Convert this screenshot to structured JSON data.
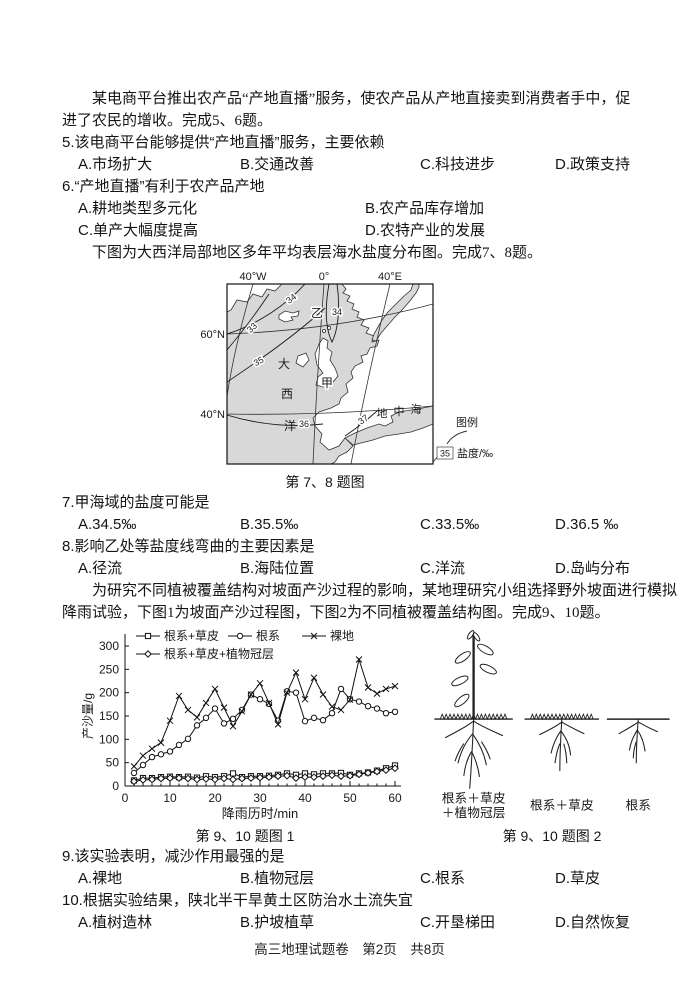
{
  "intro_ecommerce": {
    "line1": "某电商平台推出农产品“产地直播”服务，使农产品从产地直接卖到消费者手中，促",
    "line2": "进了农民的增收。完成5、6题。"
  },
  "q5": {
    "stem": "5.该电商平台能够提供“产地直播”服务，主要依赖",
    "options": [
      "A.市场扩大",
      "B.交通改善",
      "C.科技进步",
      "D.政策支持"
    ]
  },
  "q6": {
    "stem": "6.“产地直播”有利于农产品产地",
    "options": [
      "A.耕地类型多元化",
      "B.农产品库存增加",
      "C.单产大幅度提高",
      "D.农特产业的发展"
    ]
  },
  "intro_map": "下图为大西洋局部地区多年平均表层海水盐度分布图。完成7、8题。",
  "map": {
    "lon_labels": [
      "40°W",
      "0°",
      "40°E"
    ],
    "lat_labels": [
      "60°N",
      "40°N"
    ],
    "isolines": [
      "33",
      "34",
      "34",
      "35",
      "36",
      "37"
    ],
    "sea_atlantic": [
      "大",
      "西",
      "洋"
    ],
    "sea_med": [
      "地",
      "中",
      "海"
    ],
    "marker_jia": "甲",
    "marker_yi": "乙",
    "legend_title": "图例",
    "legend_value": "35",
    "legend_text": "盐度/‰",
    "caption": "第 7、8 题图"
  },
  "q7": {
    "stem": "7.甲海域的盐度可能是",
    "options": [
      "A.34.5‰",
      "B.35.5‰",
      "C.33.5‰",
      "D.36.5 ‰"
    ]
  },
  "q8": {
    "stem": "8.影响乙处等盐度线弯曲的主要因素是",
    "options": [
      "A.径流",
      "B.海陆位置",
      "C.洋流",
      "D.岛屿分布"
    ]
  },
  "intro_experiment": {
    "line1": "为研究不同植被覆盖结构对坡面产沙过程的影响，某地理研究小组选择野外坡面进行模拟",
    "line2": "降雨试验，下图1为坡面产沙过程图，下图2为不同植被覆盖结构图。完成9、10题。"
  },
  "chart_data": {
    "type": "line",
    "xlabel": "降雨历时/min",
    "ylabel": "产沙量/g",
    "xlim": [
      0,
      60
    ],
    "ylim": [
      0,
      300
    ],
    "xticks": [
      0,
      10,
      20,
      30,
      40,
      50,
      60
    ],
    "yticks": [
      0,
      50,
      100,
      150,
      200,
      250,
      300
    ],
    "legend_position": "top",
    "grid": false,
    "x": [
      2,
      4,
      6,
      8,
      10,
      12,
      14,
      16,
      18,
      20,
      22,
      24,
      26,
      28,
      30,
      32,
      34,
      36,
      38,
      40,
      42,
      44,
      46,
      48,
      50,
      52,
      54,
      56,
      58,
      60
    ],
    "series": [
      {
        "name": "根系+草皮",
        "marker": "square",
        "values": [
          12,
          17,
          17,
          19,
          20,
          19,
          20,
          18,
          21,
          19,
          21,
          27,
          19,
          21,
          21,
          22,
          24,
          27,
          24,
          27,
          25,
          27,
          27,
          28,
          24,
          27,
          29,
          33,
          38,
          44
        ]
      },
      {
        "name": "根系",
        "marker": "circle",
        "values": [
          28,
          45,
          62,
          68,
          74,
          88,
          101,
          130,
          146,
          166,
          134,
          144,
          163,
          196,
          186,
          176,
          140,
          203,
          200,
          139,
          146,
          141,
          156,
          208,
          186,
          181,
          171,
          166,
          156,
          159
        ]
      },
      {
        "name": "裸地",
        "marker": "x",
        "values": [
          42,
          65,
          80,
          93,
          140,
          193,
          163,
          147,
          178,
          208,
          168,
          128,
          160,
          196,
          220,
          178,
          132,
          200,
          243,
          186,
          232,
          196,
          170,
          163,
          185,
          271,
          211,
          198,
          208,
          214
        ]
      },
      {
        "name": "根系+草皮+植物冠层",
        "marker": "diamond",
        "values": [
          10,
          13,
          14,
          16,
          17,
          17,
          16,
          14,
          15,
          14,
          16,
          14,
          16,
          17,
          18,
          19,
          21,
          22,
          17,
          19,
          19,
          21,
          23,
          21,
          22,
          25,
          28,
          31,
          34,
          38
        ]
      }
    ]
  },
  "figure1_caption": "第 9、10 题图 1",
  "figure2": {
    "label1_line1": "根系＋草皮",
    "label1_line2": "＋植物冠层",
    "label2": "根系＋草皮",
    "label3": "根系",
    "caption": "第 9、10 题图 2"
  },
  "q9": {
    "stem": "9.该实验表明，减沙作用最强的是",
    "options": [
      "A.裸地",
      "B.植物冠层",
      "C.根系",
      "D.草皮"
    ]
  },
  "q10": {
    "stem": "10.根据实验结果，陕北半干旱黄土区防治水土流失宜",
    "options": [
      "A.植树造林",
      "B.护坡植草",
      "C.开垦梯田",
      "D.自然恢复"
    ]
  },
  "footer": "高三地理试题卷　第2页　共8页"
}
